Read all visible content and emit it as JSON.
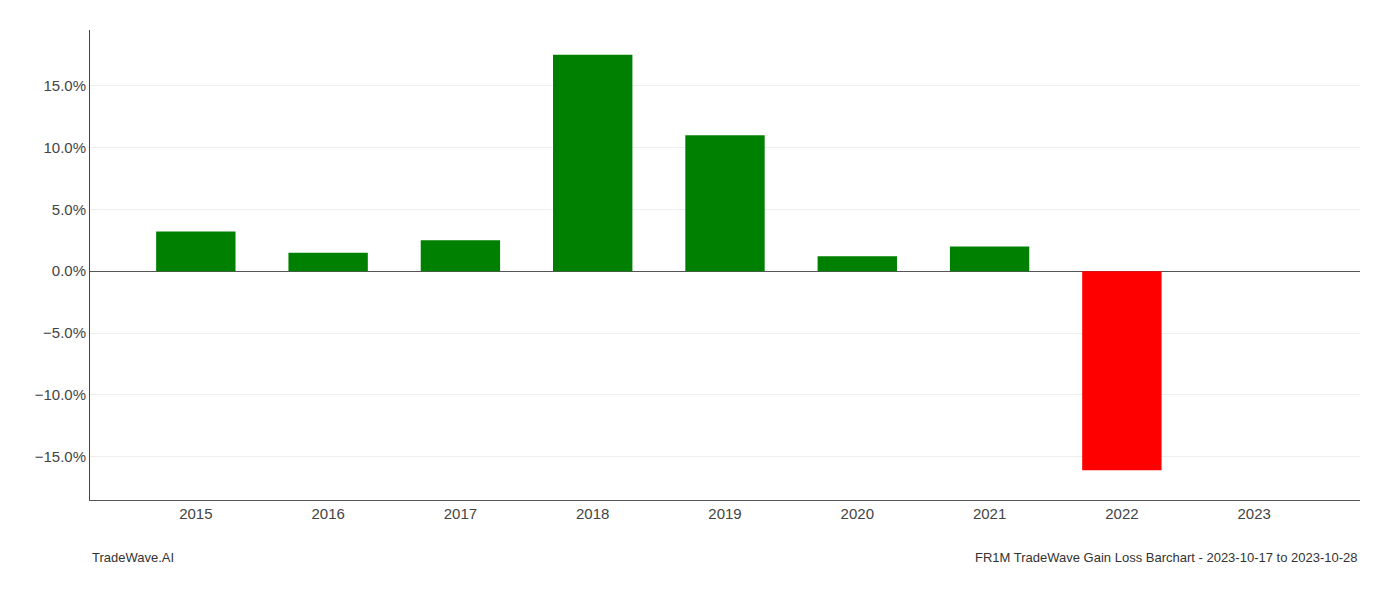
{
  "chart_data": {
    "type": "bar",
    "x": [
      2015,
      2016,
      2017,
      2018,
      2019,
      2020,
      2021,
      2022,
      2023
    ],
    "values": [
      0.032,
      0.015,
      0.025,
      0.175,
      0.11,
      0.012,
      0.02,
      -0.161,
      null
    ],
    "colors": [
      "#008000",
      "#008000",
      "#008000",
      "#008000",
      "#008000",
      "#008000",
      "#008000",
      "#ff0000",
      null
    ],
    "xlim": [
      2014.2,
      2023.8
    ],
    "xticks": [
      2015,
      2016,
      2017,
      2018,
      2019,
      2020,
      2021,
      2022,
      2023
    ],
    "ylim": [
      -0.185,
      0.195
    ],
    "yticks": [
      {
        "value": -0.15,
        "label": "−15.0%"
      },
      {
        "value": -0.1,
        "label": "−10.0%"
      },
      {
        "value": -0.05,
        "label": "−5.0%"
      },
      {
        "value": 0.0,
        "label": "0.0%"
      },
      {
        "value": 0.05,
        "label": "5.0%"
      },
      {
        "value": 0.1,
        "label": "10.0%"
      },
      {
        "value": 0.15,
        "label": "15.0%"
      }
    ],
    "grid": true,
    "annotations": [
      "TradeWave.AI",
      "FR1M TradeWave Gain Loss Barchart - 2023-10-17 to 2023-10-28"
    ]
  }
}
